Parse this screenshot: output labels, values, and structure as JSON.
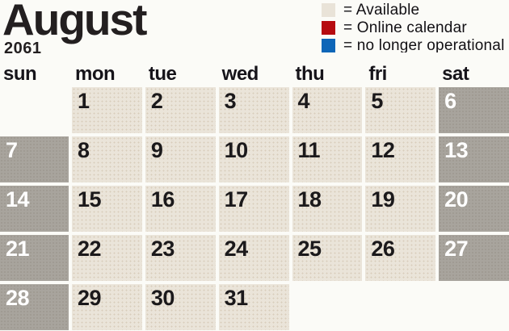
{
  "header": {
    "month": "August",
    "year": "2061"
  },
  "legend": {
    "items": [
      {
        "name": "available",
        "color": "#e9e3d8",
        "label": "= Available"
      },
      {
        "name": "online-calendar",
        "color": "#b60b10",
        "label": "= Online calendar"
      },
      {
        "name": "no-longer-operational",
        "color": "#0e66b8",
        "label": "= no longer operational"
      }
    ]
  },
  "weekdays": [
    "sun",
    "mon",
    "tue",
    "wed",
    "thu",
    "fri",
    "sat"
  ],
  "calendar": {
    "colors": {
      "available_cell": "#eae4d9",
      "weekend_cell": "#a8a49d",
      "weekday_text": "#1b191b",
      "weekend_text": "#ffffff"
    },
    "cells": [
      {
        "day": "",
        "type": "empty"
      },
      {
        "day": "1",
        "type": "available"
      },
      {
        "day": "2",
        "type": "available"
      },
      {
        "day": "3",
        "type": "available"
      },
      {
        "day": "4",
        "type": "available"
      },
      {
        "day": "5",
        "type": "available"
      },
      {
        "day": "6",
        "type": "weekend"
      },
      {
        "day": "7",
        "type": "weekend"
      },
      {
        "day": "8",
        "type": "available"
      },
      {
        "day": "9",
        "type": "available"
      },
      {
        "day": "10",
        "type": "available"
      },
      {
        "day": "11",
        "type": "available"
      },
      {
        "day": "12",
        "type": "available"
      },
      {
        "day": "13",
        "type": "weekend"
      },
      {
        "day": "14",
        "type": "weekend"
      },
      {
        "day": "15",
        "type": "available"
      },
      {
        "day": "16",
        "type": "available"
      },
      {
        "day": "17",
        "type": "available"
      },
      {
        "day": "18",
        "type": "available"
      },
      {
        "day": "19",
        "type": "available"
      },
      {
        "day": "20",
        "type": "weekend"
      },
      {
        "day": "21",
        "type": "weekend"
      },
      {
        "day": "22",
        "type": "available"
      },
      {
        "day": "23",
        "type": "available"
      },
      {
        "day": "24",
        "type": "available"
      },
      {
        "day": "25",
        "type": "available"
      },
      {
        "day": "26",
        "type": "available"
      },
      {
        "day": "27",
        "type": "weekend"
      },
      {
        "day": "28",
        "type": "weekend"
      },
      {
        "day": "29",
        "type": "available"
      },
      {
        "day": "30",
        "type": "available"
      },
      {
        "day": "31",
        "type": "available"
      },
      {
        "day": "",
        "type": "empty"
      },
      {
        "day": "",
        "type": "empty"
      },
      {
        "day": "",
        "type": "empty"
      }
    ]
  }
}
